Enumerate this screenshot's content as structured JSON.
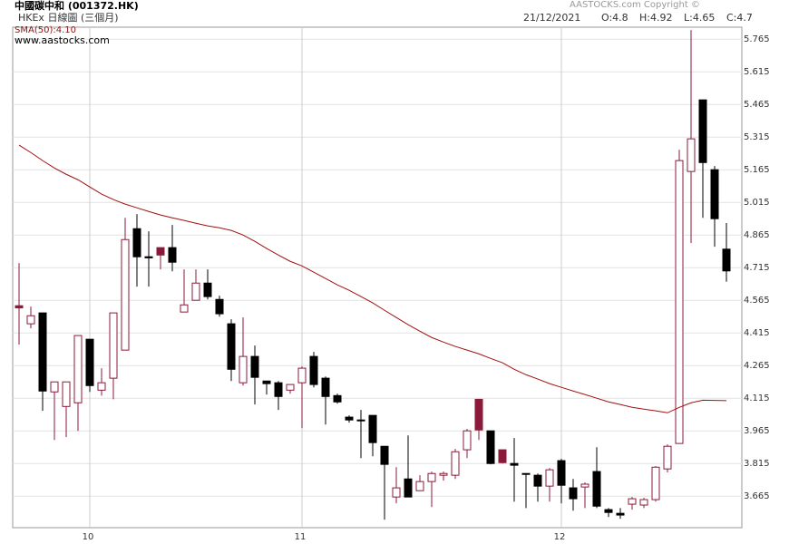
{
  "chart_data": {
    "type": "candlestick",
    "title": "中國碳中和 (001372.HK)",
    "subtitle": "HKEx 日線圖 (三個月)",
    "copyright": "AASTOCKS.com Copyright ©",
    "website": "www.aastocks.com",
    "quote": {
      "date": "21/12/2021",
      "open": "O:4.8",
      "high": "H:4.92",
      "low": "L:4.65",
      "close": "C:4.7"
    },
    "categories": [
      null,
      null,
      null,
      null,
      null,
      null,
      "10",
      null,
      null,
      null,
      null,
      null,
      null,
      null,
      null,
      null,
      null,
      null,
      null,
      null,
      null,
      null,
      null,
      null,
      "11",
      null,
      null,
      null,
      null,
      null,
      null,
      null,
      null,
      null,
      null,
      null,
      null,
      null,
      null,
      null,
      null,
      null,
      null,
      null,
      null,
      null,
      "12",
      null,
      null,
      null,
      null,
      null,
      null,
      null,
      null,
      null,
      null,
      null,
      null,
      null,
      null
    ],
    "open": [
      4.53,
      4.457,
      4.507,
      4.144,
      4.077,
      4.094,
      4.386,
      4.152,
      4.207,
      4.336,
      4.894,
      4.765,
      4.807,
      4.807,
      4.511,
      4.565,
      4.644,
      4.569,
      4.457,
      4.186,
      4.307,
      4.194,
      4.186,
      4.152,
      4.186,
      4.307,
      4.207,
      4.127,
      4.028,
      4.015,
      4.036,
      3.894,
      3.661,
      3.744,
      3.69,
      3.732,
      3.761,
      3.761,
      3.878,
      4.11,
      3.965,
      3.878,
      3.815,
      3.769,
      3.761,
      3.711,
      3.828,
      3.703,
      3.707,
      3.778,
      3.603,
      3.586,
      3.628,
      3.624,
      3.649,
      3.79,
      3.907,
      5.157,
      5.486,
      5.165,
      4.8
    ],
    "high": [
      4.736,
      4.536,
      4.507,
      4.19,
      4.19,
      4.403,
      4.386,
      4.253,
      4.507,
      4.944,
      4.961,
      4.882,
      4.807,
      4.911,
      4.707,
      4.707,
      4.707,
      4.586,
      4.478,
      4.486,
      4.357,
      4.194,
      4.194,
      4.178,
      4.261,
      4.328,
      4.215,
      4.136,
      4.036,
      4.061,
      4.036,
      3.894,
      3.798,
      3.944,
      3.761,
      3.778,
      3.778,
      3.882,
      3.974,
      4.11,
      3.965,
      3.878,
      3.932,
      3.769,
      3.769,
      3.794,
      3.836,
      3.744,
      3.728,
      3.89,
      3.61,
      3.61,
      3.661,
      3.657,
      3.803,
      3.903,
      5.257,
      5.807,
      5.486,
      5.182,
      4.92
    ],
    "low": [
      4.361,
      4.436,
      4.057,
      3.923,
      3.936,
      3.965,
      4.144,
      4.127,
      4.11,
      4.336,
      4.628,
      4.628,
      4.707,
      4.698,
      4.511,
      4.565,
      4.569,
      4.49,
      4.194,
      4.173,
      4.086,
      4.132,
      4.061,
      4.136,
      3.978,
      4.165,
      3.994,
      4.09,
      4.003,
      3.84,
      3.848,
      3.557,
      3.632,
      3.661,
      3.69,
      3.615,
      3.736,
      3.744,
      3.84,
      3.923,
      3.811,
      3.815,
      3.64,
      3.61,
      3.64,
      3.64,
      3.632,
      3.598,
      3.61,
      3.61,
      3.569,
      3.561,
      3.603,
      3.61,
      3.64,
      3.774,
      3.907,
      4.828,
      4.944,
      4.811,
      4.65
    ],
    "close": [
      4.54,
      4.494,
      4.148,
      4.19,
      4.19,
      4.403,
      4.173,
      4.186,
      4.507,
      4.844,
      4.765,
      4.76,
      4.773,
      4.74,
      4.544,
      4.644,
      4.582,
      4.503,
      4.248,
      4.307,
      4.211,
      4.182,
      4.123,
      4.178,
      4.253,
      4.178,
      4.123,
      4.098,
      4.015,
      4.011,
      3.911,
      3.811,
      3.703,
      3.661,
      3.732,
      3.769,
      3.769,
      3.869,
      3.965,
      3.969,
      3.815,
      3.819,
      3.807,
      3.765,
      3.711,
      3.786,
      3.715,
      3.653,
      3.72,
      3.619,
      3.59,
      3.578,
      3.653,
      3.649,
      3.798,
      3.894,
      5.207,
      5.307,
      5.198,
      4.94,
      4.7
    ],
    "colors": [
      "#8b1a3a",
      "#ffffff",
      "#000000",
      "#ffffff",
      "#ffffff",
      "#ffffff",
      "#000000",
      "#ffffff",
      "#ffffff",
      "#ffffff",
      "#000000",
      "#000000",
      "#8b1a3a",
      "#000000",
      "#ffffff",
      "#ffffff",
      "#000000",
      "#000000",
      "#000000",
      "#ffffff",
      "#000000",
      "#000000",
      "#000000",
      "#ffffff",
      "#ffffff",
      "#000000",
      "#000000",
      "#000000",
      "#000000",
      "#000000",
      "#000000",
      "#000000",
      "#ffffff",
      "#000000",
      "#ffffff",
      "#ffffff",
      "#ffffff",
      "#ffffff",
      "#ffffff",
      "#8b1a3a",
      "#000000",
      "#8b1a3a",
      "#000000",
      "#000000",
      "#000000",
      "#ffffff",
      "#000000",
      "#000000",
      "#ffffff",
      "#000000",
      "#000000",
      "#000000",
      "#ffffff",
      "#ffffff",
      "#ffffff",
      "#ffffff",
      "#ffffff",
      "#ffffff",
      "#000000",
      "#000000",
      "#000000"
    ],
    "outline_color": "#8b1a3a",
    "sma": {
      "label": "SMA(50):4.10",
      "color": "#a01010",
      "values": [
        5.278,
        5.244,
        5.207,
        5.173,
        5.144,
        5.119,
        5.086,
        5.053,
        5.028,
        5.007,
        4.99,
        4.973,
        4.957,
        4.944,
        4.932,
        4.919,
        4.907,
        4.898,
        4.886,
        4.865,
        4.836,
        4.803,
        4.773,
        4.744,
        4.723,
        4.694,
        4.665,
        4.636,
        4.611,
        4.582,
        4.553,
        4.519,
        4.486,
        4.453,
        4.423,
        4.394,
        4.373,
        4.353,
        4.336,
        4.319,
        4.298,
        4.278,
        4.248,
        4.223,
        4.203,
        4.182,
        4.165,
        4.148,
        4.132,
        4.115,
        4.098,
        4.086,
        4.073,
        4.065,
        4.057,
        4.048,
        4.073,
        4.094,
        4.106,
        4.105,
        4.104
      ]
    },
    "ylim": [
      3.52,
      5.82
    ],
    "yticks": [
      3.665,
      3.815,
      3.965,
      4.115,
      4.265,
      4.415,
      4.565,
      4.715,
      4.865,
      5.015,
      5.165,
      5.315,
      5.465,
      5.615,
      5.765
    ],
    "grid": true
  }
}
